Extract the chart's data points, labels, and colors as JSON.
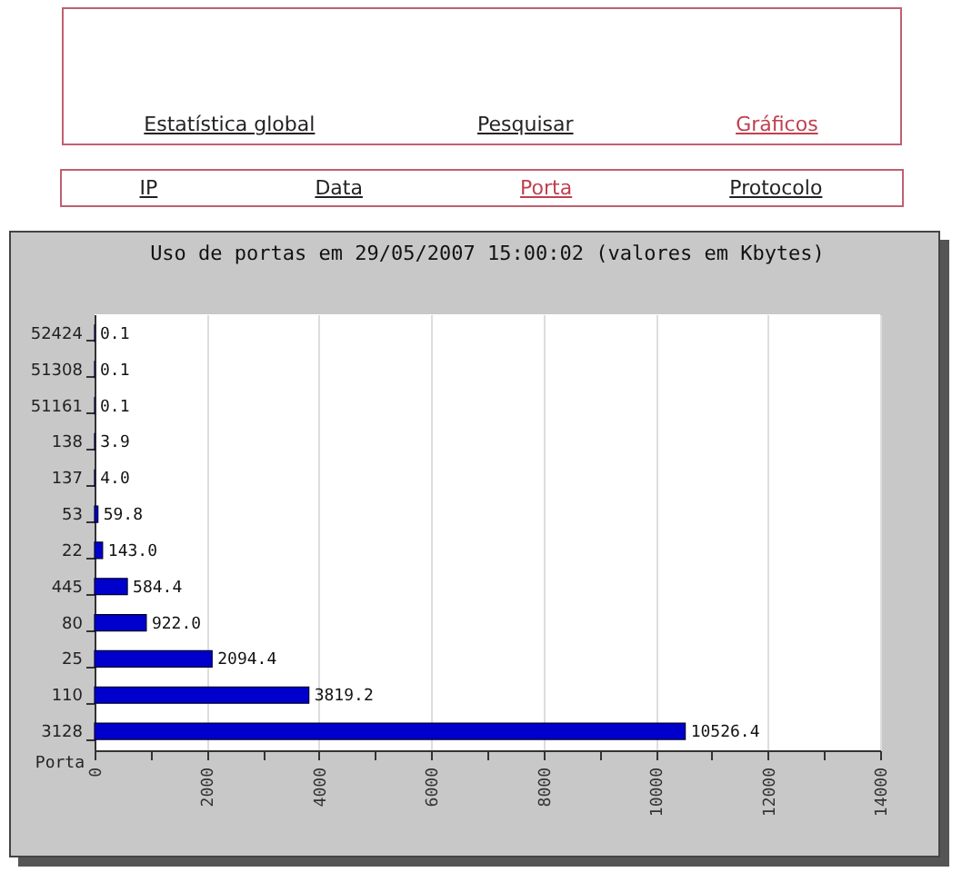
{
  "chart_data": {
    "type": "bar",
    "orientation": "horizontal",
    "title": "Uso de portas em 29/05/2007 15:00:02 (valores em Kbytes)",
    "ylabel": "Porta",
    "annotations": [
      "Estatística global",
      "Pesquisar",
      "Gráficos",
      "IP",
      "Data",
      "Porta",
      "Protocolo"
    ],
    "categories": [
      "52424",
      "51308",
      "51161",
      "138",
      "137",
      "53",
      "22",
      "445",
      "80",
      "25",
      "110",
      "3128"
    ],
    "values": [
      0.1,
      0.1,
      0.1,
      3.9,
      4.0,
      59.8,
      143.0,
      584.4,
      922.0,
      2094.4,
      3819.2,
      10526.4
    ],
    "value_labels": [
      "0.1",
      "0.1",
      "0.1",
      "3.9",
      "4.0",
      "59.8",
      "143.0",
      "584.4",
      "922.0",
      "2094.4",
      "3819.2",
      "10526.4"
    ],
    "color": "#0000cc",
    "xlim": [
      0,
      14000
    ],
    "xticks": [
      0,
      {
        "value": 1000,
        "label": null
      },
      2000,
      {
        "value": 3000,
        "label": null
      },
      4000,
      {
        "value": 5000,
        "label": null
      },
      6000,
      {
        "value": 7000,
        "label": null
      },
      8000,
      {
        "value": 9000,
        "label": null
      },
      10000,
      {
        "value": 11000,
        "label": null
      },
      12000,
      {
        "value": 13000,
        "label": null
      },
      14000
    ],
    "grid": "x"
  }
}
